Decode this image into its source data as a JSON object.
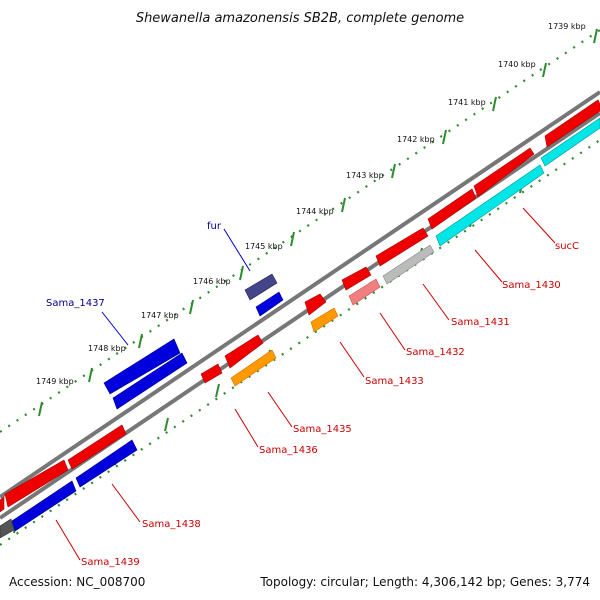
{
  "title": "Shewanella amazonensis SB2B, complete genome",
  "footer": {
    "accession": "Accession: NC_008700",
    "stats": "Topology: circular; Length: 4,306,142 bp; Genes: 3,774"
  },
  "ticks": [
    "1739 kbp",
    "1740 kbp",
    "1741 kbp",
    "1742 kbp",
    "1743 kbp",
    "1744 kbp",
    "1745 kbp",
    "1746 kbp",
    "1747 kbp",
    "1748 kbp",
    "1749 kbp"
  ],
  "genes": {
    "fur": "fur",
    "sama_1437": "Sama_1437",
    "succ": "sucC",
    "sama_1430": "Sama_1430",
    "sama_1431": "Sama_1431",
    "sama_1432": "Sama_1432",
    "sama_1433": "Sama_1433",
    "sama_1435": "Sama_1435",
    "sama_1436": "Sama_1436",
    "sama_1438": "Sama_1438",
    "sama_1439": "Sama_1439"
  },
  "colors": {
    "forward_label": "#00008b",
    "reverse_label": "#cc0000",
    "backbone": "#777777",
    "tick": "#2e8b2e",
    "red": "#ee0000",
    "blue": "#0000dd",
    "cyan": "#00e5e5",
    "orange": "#ff9900",
    "pink": "#f08080",
    "grey": "#bbbbbb",
    "navy": "#444488"
  }
}
